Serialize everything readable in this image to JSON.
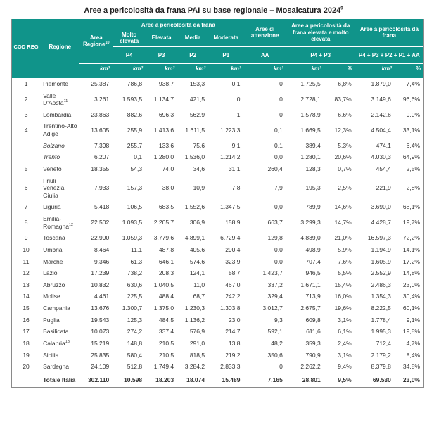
{
  "title": "Aree a pericolosità da frana PAI su base regionale – Mosaicatura 2024",
  "title_note": "9",
  "colors": {
    "header_bg": "#10948a",
    "header_text": "#ffffff",
    "body_text": "#333333",
    "border": "#8a8a8a"
  },
  "header": {
    "cod_reg": "COD REG",
    "regione": "Regione",
    "area_regione": "Area Regione",
    "area_regione_note": "10",
    "group_frana": "Aree a pericolosità da frana",
    "sub_molto_elevata": "Molto elevata",
    "sub_elevata": "Elevata",
    "sub_media": "Media",
    "sub_moderata": "Moderata",
    "attenzione": "Aree di attenzione",
    "group_p4p3": "Aree a pericolosità da frana elevata e molto elevata",
    "group_all": "Aree a pericolosità da frana",
    "code_p4": "P4",
    "code_p3": "P3",
    "code_p2": "P2",
    "code_p1": "P1",
    "code_aa": "AA",
    "code_p4p3": "P4 + P3",
    "code_all": "P4 + P3 + P2 + P1 + AA",
    "units": [
      "km²",
      "km²",
      "km²",
      "km²",
      "km²",
      "km²",
      "km²",
      "%",
      "km²",
      "%"
    ]
  },
  "rows": [
    {
      "cod": "1",
      "name": "Piemonte",
      "values": [
        "25.387",
        "786,8",
        "938,7",
        "153,3",
        "0,1",
        "0",
        "1.725,5",
        "6,8%",
        "1.879,0",
        "7,4%"
      ]
    },
    {
      "cod": "2",
      "name": "Valle D'Aosta",
      "note": "11",
      "values": [
        "3.261",
        "1.593,5",
        "1.134,7",
        "421,5",
        "0",
        "0",
        "2.728,1",
        "83,7%",
        "3.149,6",
        "96,6%"
      ]
    },
    {
      "cod": "3",
      "name": "Lombardia",
      "values": [
        "23.863",
        "882,6",
        "696,3",
        "562,9",
        "1",
        "0",
        "1.578,9",
        "6,6%",
        "2.142,6",
        "9,0%"
      ]
    },
    {
      "cod": "4",
      "name": "Trentino-Alto Adige",
      "values": [
        "13.605",
        "255,9",
        "1.413,6",
        "1.611,5",
        "1.223,3",
        "0,1",
        "1.669,5",
        "12,3%",
        "4.504,4",
        "33,1%"
      ]
    },
    {
      "cod": "",
      "name": "Bolzano",
      "italic": true,
      "values": [
        "7.398",
        "255,7",
        "133,6",
        "75,6",
        "9,1",
        "0,1",
        "389,4",
        "5,3%",
        "474,1",
        "6,4%"
      ]
    },
    {
      "cod": "",
      "name": "Trento",
      "italic": true,
      "values": [
        "6.207",
        "0,1",
        "1.280,0",
        "1.536,0",
        "1.214,2",
        "0,0",
        "1.280,1",
        "20,6%",
        "4.030,3",
        "64,9%"
      ]
    },
    {
      "cod": "5",
      "name": "Veneto",
      "values": [
        "18.355",
        "54,3",
        "74,0",
        "34,6",
        "31,1",
        "260,4",
        "128,3",
        "0,7%",
        "454,4",
        "2,5%"
      ]
    },
    {
      "cod": "6",
      "name": "Friuli Venezia Giulia",
      "values": [
        "7.933",
        "157,3",
        "38,0",
        "10,9",
        "7,8",
        "7,9",
        "195,3",
        "2,5%",
        "221,9",
        "2,8%"
      ]
    },
    {
      "cod": "7",
      "name": "Liguria",
      "values": [
        "5.418",
        "106,5",
        "683,5",
        "1.552,6",
        "1.347,5",
        "0,0",
        "789,9",
        "14,6%",
        "3.690,0",
        "68,1%"
      ]
    },
    {
      "cod": "8",
      "name": "Emilia-Romagna",
      "note": "12",
      "values": [
        "22.502",
        "1.093,5",
        "2.205,7",
        "306,9",
        "158,9",
        "663,7",
        "3.299,3",
        "14,7%",
        "4.428,7",
        "19,7%"
      ]
    },
    {
      "cod": "9",
      "name": "Toscana",
      "values": [
        "22.990",
        "1.059,3",
        "3.779,6",
        "4.899,1",
        "6.729,4",
        "129,8",
        "4.839,0",
        "21,0%",
        "16.597,3",
        "72,2%"
      ]
    },
    {
      "cod": "10",
      "name": "Umbria",
      "values": [
        "8.464",
        "11,1",
        "487,8",
        "405,6",
        "290,4",
        "0,0",
        "498,9",
        "5,9%",
        "1.194,9",
        "14,1%"
      ]
    },
    {
      "cod": "11",
      "name": "Marche",
      "values": [
        "9.346",
        "61,3",
        "646,1",
        "574,6",
        "323,9",
        "0,0",
        "707,4",
        "7,6%",
        "1.605,9",
        "17,2%"
      ]
    },
    {
      "cod": "12",
      "name": "Lazio",
      "values": [
        "17.239",
        "738,2",
        "208,3",
        "124,1",
        "58,7",
        "1.423,7",
        "946,5",
        "5,5%",
        "2.552,9",
        "14,8%"
      ]
    },
    {
      "cod": "13",
      "name": "Abruzzo",
      "values": [
        "10.832",
        "630,6",
        "1.040,5",
        "11,0",
        "467,0",
        "337,2",
        "1.671,1",
        "15,4%",
        "2.486,3",
        "23,0%"
      ]
    },
    {
      "cod": "14",
      "name": "Molise",
      "values": [
        "4.461",
        "225,5",
        "488,4",
        "68,7",
        "242,2",
        "329,4",
        "713,9",
        "16,0%",
        "1.354,3",
        "30,4%"
      ]
    },
    {
      "cod": "15",
      "name": "Campania",
      "values": [
        "13.676",
        "1.300,7",
        "1.375,0",
        "1.230,3",
        "1.303,8",
        "3.012,7",
        "2.675,7",
        "19,6%",
        "8.222,5",
        "60,1%"
      ]
    },
    {
      "cod": "16",
      "name": "Puglia",
      "values": [
        "19.543",
        "125,3",
        "484,5",
        "1.136,2",
        "23,0",
        "9,3",
        "609,8",
        "3,1%",
        "1.778,4",
        "9,1%"
      ]
    },
    {
      "cod": "17",
      "name": "Basilicata",
      "values": [
        "10.073",
        "274,2",
        "337,4",
        "576,9",
        "214,7",
        "592,1",
        "611,6",
        "6,1%",
        "1.995,3",
        "19,8%"
      ]
    },
    {
      "cod": "18",
      "name": "Calabria",
      "note": "13",
      "values": [
        "15.219",
        "148,8",
        "210,5",
        "291,0",
        "13,8",
        "48,2",
        "359,3",
        "2,4%",
        "712,4",
        "4,7%"
      ]
    },
    {
      "cod": "19",
      "name": "Sicilia",
      "values": [
        "25.835",
        "580,4",
        "210,5",
        "818,5",
        "219,2",
        "350,6",
        "790,9",
        "3,1%",
        "2.179,2",
        "8,4%"
      ]
    },
    {
      "cod": "20",
      "name": "Sardegna",
      "values": [
        "24.109",
        "512,8",
        "1.749,4",
        "3.284,2",
        "2.833,3",
        "0",
        "2.262,2",
        "9,4%",
        "8.379,8",
        "34,8%"
      ]
    }
  ],
  "total": {
    "label": "Totale Italia",
    "values": [
      "302.110",
      "10.598",
      "18.203",
      "18.074",
      "15.489",
      "7.165",
      "28.801",
      "9,5%",
      "69.530",
      "23,0%"
    ]
  }
}
